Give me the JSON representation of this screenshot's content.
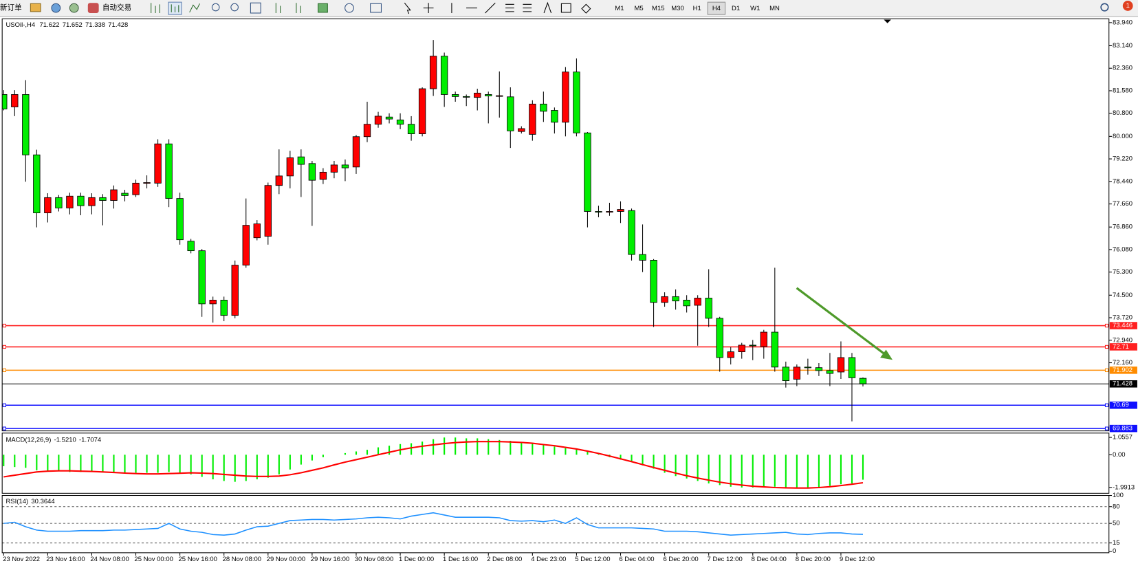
{
  "toolbar": {
    "new_order": "新订单",
    "auto_trading": "自动交易",
    "timeframes": [
      "M1",
      "M5",
      "M15",
      "M30",
      "H1",
      "H4",
      "D1",
      "W1",
      "MN"
    ],
    "active_timeframe_index": 5,
    "notifications": 1
  },
  "chart_data": [
    {
      "type": "candlestick",
      "title": "USOil-,H4",
      "up_color": "#ff0000",
      "down_color": "#00ee00",
      "categories": [
        "23 Nov 2022",
        null,
        null,
        null,
        "23 Nov 16:00",
        null,
        null,
        null,
        "24 Nov 08:00",
        null,
        null,
        null,
        "25 Nov 00:00",
        null,
        null,
        null,
        "25 Nov 16:00",
        null,
        null,
        null,
        "28 Nov 08:00",
        null,
        null,
        null,
        "29 Nov 00:00",
        null,
        null,
        null,
        "29 Nov 16:00",
        null,
        null,
        null,
        "30 Nov 08:00",
        null,
        null,
        null,
        "1 Dec 00:00",
        null,
        null,
        null,
        "1 Dec 16:00",
        null,
        null,
        null,
        "2 Dec 08:00",
        null,
        null,
        null,
        "4 Dec 23:00",
        null,
        null,
        null,
        "5 Dec 12:00",
        null,
        null,
        null,
        "6 Dec 04:00",
        null,
        null,
        null,
        "6 Dec 20:00",
        null,
        null,
        null,
        "7 Dec 12:00",
        null,
        null,
        null,
        "8 Dec 04:00",
        null,
        null,
        null,
        "8 Dec 20:00",
        null,
        null,
        null,
        "9 Dec 12:00",
        null,
        null
      ],
      "open": [
        81.45,
        81.02,
        81.45,
        79.36,
        77.35,
        77.88,
        77.52,
        77.93,
        77.6,
        77.88,
        77.78,
        78.03,
        77.98,
        78.38,
        78.38,
        79.74,
        77.85,
        76.37,
        76.04,
        74.2,
        74.33,
        73.8,
        75.54,
        76.49,
        76.54,
        78.3,
        78.63,
        79.29,
        79.06,
        78.51,
        78.76,
        79.01,
        78.94,
        79.99,
        80.42,
        80.67,
        80.57,
        80.42,
        80.09,
        81.65,
        82.78,
        81.45,
        81.38,
        81.35,
        81.45,
        81.4,
        81.37,
        80.17,
        80.07,
        81.12,
        80.9,
        80.49,
        82.23,
        80.12,
        77.4,
        77.38,
        77.4,
        77.43,
        75.91,
        75.71,
        74.25,
        74.45,
        74.33,
        74.15,
        74.4,
        73.7,
        72.34,
        72.54,
        72.77,
        72.72,
        73.22,
        72.01,
        71.59,
        72.01,
        71.99,
        71.89,
        71.84,
        72.34,
        71.622
      ],
      "high": [
        81.6,
        81.6,
        81.95,
        79.54,
        78.03,
        77.97,
        78.05,
        78.05,
        78.03,
        78.0,
        78.3,
        78.15,
        78.5,
        78.65,
        79.9,
        79.9,
        78.05,
        76.45,
        76.1,
        74.45,
        74.45,
        75.7,
        77.85,
        77.1,
        78.4,
        79.55,
        79.5,
        79.55,
        79.15,
        78.9,
        79.15,
        79.2,
        80.05,
        81.2,
        80.85,
        80.8,
        80.8,
        80.7,
        81.7,
        83.34,
        82.9,
        81.55,
        81.45,
        81.65,
        81.55,
        82.25,
        81.7,
        80.35,
        81.25,
        81.55,
        81.0,
        82.4,
        82.7,
        80.15,
        77.6,
        77.7,
        77.75,
        77.5,
        76.95,
        75.75,
        74.6,
        74.7,
        74.5,
        74.5,
        75.4,
        73.75,
        72.7,
        72.85,
        72.95,
        73.3,
        75.45,
        72.2,
        72.1,
        72.3,
        72.15,
        72.5,
        72.9,
        72.5,
        71.652
      ],
      "low": [
        80.9,
        80.7,
        78.43,
        76.85,
        77.02,
        77.4,
        77.3,
        77.27,
        77.3,
        76.92,
        77.5,
        77.75,
        77.9,
        78.2,
        78.25,
        77.55,
        76.25,
        75.95,
        73.75,
        73.55,
        73.6,
        73.7,
        75.45,
        76.4,
        76.25,
        78.0,
        78.2,
        77.9,
        76.9,
        78.35,
        78.55,
        78.45,
        78.7,
        79.8,
        80.3,
        80.45,
        80.25,
        79.85,
        80.0,
        81.4,
        81.02,
        81.2,
        81.05,
        80.9,
        80.45,
        80.65,
        79.6,
        80.1,
        79.85,
        80.5,
        80.1,
        80.0,
        80.0,
        76.85,
        77.2,
        77.25,
        77.0,
        75.7,
        75.3,
        73.4,
        74.1,
        74.0,
        73.9,
        72.75,
        73.4,
        71.85,
        72.1,
        72.3,
        72.25,
        72.3,
        71.85,
        71.3,
        71.35,
        71.75,
        71.7,
        71.35,
        71.6,
        70.13,
        71.338
      ],
      "close": [
        80.95,
        81.45,
        79.36,
        77.35,
        77.88,
        77.52,
        77.93,
        77.6,
        77.88,
        77.78,
        78.15,
        77.95,
        78.38,
        78.4,
        79.74,
        77.85,
        76.42,
        76.04,
        74.2,
        74.33,
        73.8,
        75.54,
        76.92,
        76.97,
        78.3,
        78.63,
        79.26,
        79.03,
        78.48,
        78.76,
        79.01,
        78.91,
        79.99,
        80.42,
        80.7,
        80.6,
        80.42,
        80.09,
        81.65,
        82.78,
        81.45,
        81.38,
        81.37,
        81.5,
        81.4,
        81.41,
        80.19,
        80.27,
        81.12,
        80.87,
        80.49,
        82.23,
        80.12,
        77.4,
        77.38,
        77.4,
        77.47,
        75.91,
        75.71,
        74.25,
        74.45,
        74.3,
        74.13,
        74.4,
        73.7,
        72.34,
        72.54,
        72.77,
        72.75,
        73.22,
        72.01,
        71.54,
        72.01,
        72.0,
        71.89,
        71.79,
        72.34,
        71.64,
        71.428
      ],
      "ylim": [
        69.8,
        84.07
      ],
      "yticks": [
        {
          "value": 83.94,
          "label": "83.940"
        },
        {
          "value": 83.14,
          "label": "83.140"
        },
        {
          "value": 82.36,
          "label": "82.360"
        },
        {
          "value": 81.58,
          "label": "81.580"
        },
        {
          "value": 80.8,
          "label": "80.800"
        },
        {
          "value": 80,
          "label": "80.000"
        },
        {
          "value": 79.22,
          "label": "79.220"
        },
        {
          "value": 78.44,
          "label": "78.440"
        },
        {
          "value": 77.66,
          "label": "77.660"
        },
        {
          "value": 76.86,
          "label": "76.860"
        },
        {
          "value": 76.08,
          "label": "76.080"
        },
        {
          "value": 75.3,
          "label": "75.300"
        },
        {
          "value": 74.5,
          "label": "74.500"
        },
        {
          "value": 73.72,
          "label": "73.720"
        },
        {
          "value": 72.94,
          "label": "72.940"
        },
        {
          "value": 72.16,
          "label": "72.160"
        }
      ],
      "hlines": [
        {
          "value": 73.446,
          "color": "#ff2020"
        },
        {
          "value": 72.71,
          "color": "#ff2020"
        },
        {
          "value": 71.902,
          "color": "#ff8c00"
        },
        {
          "value": 70.69,
          "color": "#1010ff"
        },
        {
          "value": 69.883,
          "color": "#1010ff"
        }
      ],
      "price_line_color": "#000000"
    },
    {
      "type": "macd",
      "title": "MACD(12,26,9)",
      "ylim": [
        -2.35,
        1.32
      ],
      "yticks": [
        1.0557,
        {
          "value": 0,
          "label": "0.00"
        },
        -1.9913
      ],
      "series": [
        {
          "kind": "histogram",
          "color": "#00ee00",
          "values": [
            -0.7,
            -0.75,
            -0.8,
            -0.95,
            -1.0,
            -1.0,
            -1.05,
            -1.05,
            -1.05,
            -1.05,
            -1.05,
            -1.1,
            -1.1,
            -1.1,
            -1.1,
            -1.05,
            -1.1,
            -1.2,
            -1.35,
            -1.5,
            -1.6,
            -1.65,
            -1.6,
            -1.5,
            -1.4,
            -1.2,
            -0.9,
            -0.6,
            -0.35,
            -0.15,
            0.0,
            0.1,
            0.2,
            0.3,
            0.45,
            0.55,
            0.65,
            0.7,
            0.8,
            0.95,
            1.05,
            1.05,
            1.0,
            1.0,
            0.95,
            0.9,
            0.85,
            0.75,
            0.7,
            0.6,
            0.5,
            0.4,
            0.35,
            0.25,
            0.05,
            -0.15,
            -0.3,
            -0.45,
            -0.65,
            -0.85,
            -1.1,
            -1.3,
            -1.45,
            -1.6,
            -1.75,
            -1.85,
            -1.95,
            -2.0,
            -2.0,
            -2.0,
            -1.95,
            -2.0,
            -2.05,
            -2.05,
            -2.0,
            -1.9,
            -1.8,
            -1.75,
            -1.521
          ],
          "value_labels": [
            null,
            null,
            null,
            null,
            null,
            null,
            null,
            null,
            null,
            null,
            null,
            null,
            null,
            null,
            null,
            null,
            null,
            null,
            null,
            null,
            null,
            null,
            null,
            null,
            null,
            null,
            null,
            null,
            null,
            null,
            null,
            null,
            null,
            null,
            null,
            null,
            null,
            null,
            null,
            null,
            null,
            null,
            null,
            null,
            null,
            null,
            null,
            null,
            null,
            null,
            null,
            null,
            null,
            null,
            null,
            null,
            null,
            null,
            null,
            null,
            null,
            null,
            null,
            null,
            null,
            null,
            null,
            null,
            null,
            null,
            null,
            null,
            null,
            null,
            null,
            null,
            null,
            null,
            "-1.5210"
          ]
        },
        {
          "kind": "line",
          "color": "#ff0000",
          "values": [
            -1.35,
            -1.25,
            -1.15,
            -1.05,
            -1.0,
            -0.98,
            -0.98,
            -1.0,
            -1.02,
            -1.05,
            -1.08,
            -1.12,
            -1.15,
            -1.17,
            -1.17,
            -1.15,
            -1.13,
            -1.1,
            -1.12,
            -1.15,
            -1.2,
            -1.25,
            -1.3,
            -1.32,
            -1.32,
            -1.3,
            -1.22,
            -1.1,
            -0.95,
            -0.8,
            -0.62,
            -0.45,
            -0.3,
            -0.15,
            0.0,
            0.15,
            0.3,
            0.42,
            0.52,
            0.6,
            0.68,
            0.74,
            0.78,
            0.8,
            0.8,
            0.8,
            0.78,
            0.75,
            0.7,
            0.62,
            0.55,
            0.45,
            0.35,
            0.22,
            0.08,
            -0.08,
            -0.25,
            -0.42,
            -0.6,
            -0.78,
            -0.95,
            -1.12,
            -1.28,
            -1.42,
            -1.55,
            -1.67,
            -1.77,
            -1.85,
            -1.92,
            -1.96,
            -2.0,
            -2.02,
            -2.03,
            -2.03,
            -2.0,
            -1.95,
            -1.88,
            -1.8,
            -1.7074
          ]
        }
      ]
    },
    {
      "type": "line",
      "title": "RSI(14)",
      "ylim": [
        0,
        100
      ],
      "yticks": [
        100,
        80,
        50,
        15,
        0
      ],
      "series": [
        {
          "kind": "line",
          "color": "#1e90ff",
          "values": [
            50,
            52,
            44,
            38,
            36,
            36,
            36,
            37,
            37,
            37,
            38,
            38,
            39,
            40,
            41,
            50,
            40,
            36,
            34,
            30,
            29,
            31,
            38,
            44,
            45,
            50,
            55,
            56,
            57,
            57,
            56,
            57,
            58,
            60,
            61,
            60,
            58,
            63,
            66,
            69,
            65,
            61,
            61,
            61,
            61,
            60,
            55,
            54,
            55,
            53,
            56,
            50,
            60,
            48,
            42,
            42,
            42,
            42,
            41,
            40,
            36,
            36,
            36,
            35,
            33,
            31,
            29,
            30,
            31,
            32,
            33,
            34,
            31,
            30,
            32,
            33,
            33,
            31,
            30.3644
          ]
        }
      ]
    }
  ]
}
